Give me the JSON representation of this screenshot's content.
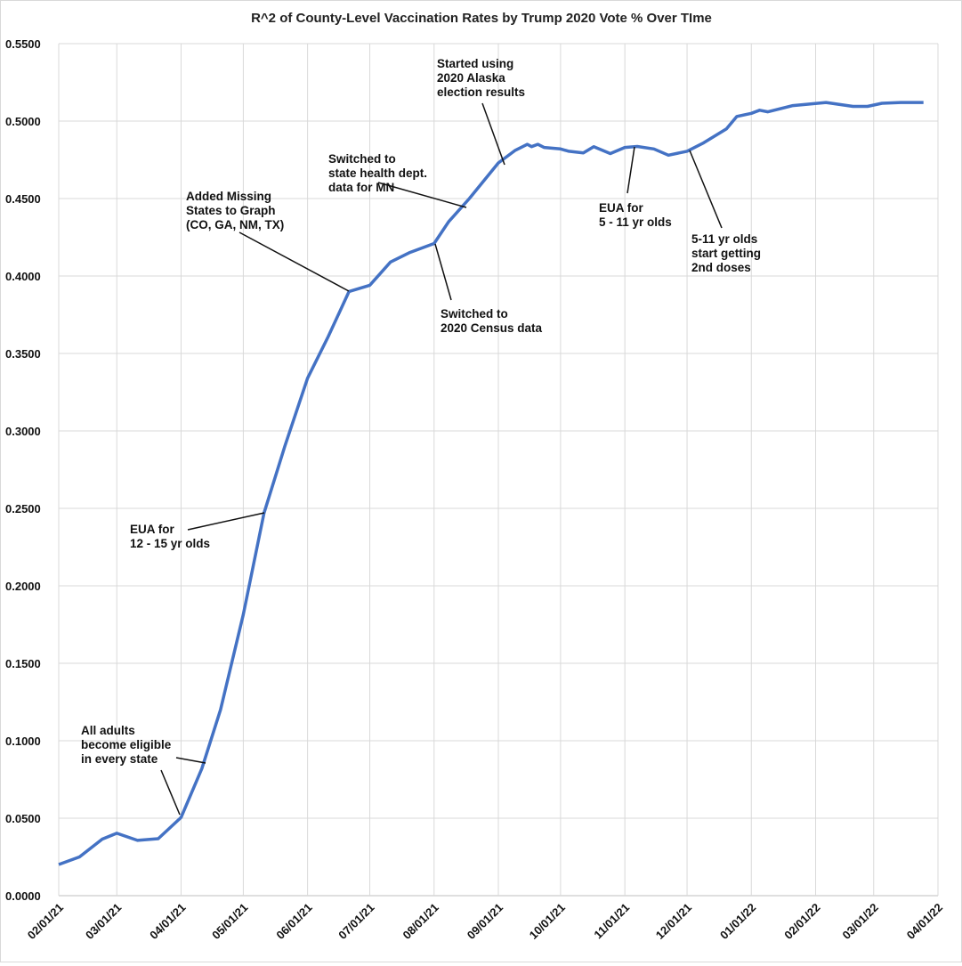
{
  "chart_data": {
    "type": "line",
    "title": "R^2 of County-Level Vaccination Rates by Trump 2020 Vote % Over TIme",
    "xlabel": "",
    "ylabel": "",
    "ylim": [
      0,
      0.55
    ],
    "xlim": [
      "2021-02-01",
      "2022-04-01"
    ],
    "grid": true,
    "legend": "none",
    "line_color": "#4472C4",
    "y_ticks": [
      "0.0000",
      "0.0500",
      "0.1000",
      "0.1500",
      "0.2000",
      "0.2500",
      "0.3000",
      "0.3500",
      "0.4000",
      "0.4500",
      "0.5000",
      "0.5500"
    ],
    "x_ticks": [
      "02/01/21",
      "03/01/21",
      "04/01/21",
      "05/01/21",
      "06/01/21",
      "07/01/21",
      "08/01/21",
      "09/01/21",
      "10/01/21",
      "11/01/21",
      "12/01/21",
      "01/01/22",
      "02/01/22",
      "03/01/22",
      "04/01/22"
    ],
    "x_tick_dates": [
      "2021-02-01",
      "2021-03-01",
      "2021-04-01",
      "2021-05-01",
      "2021-06-01",
      "2021-07-01",
      "2021-08-01",
      "2021-09-01",
      "2021-10-01",
      "2021-11-01",
      "2021-12-01",
      "2022-01-01",
      "2022-02-01",
      "2022-03-01",
      "2022-04-01"
    ],
    "series": [
      {
        "x": [
          "2021-02-01",
          "2021-02-11",
          "2021-02-22",
          "2021-03-01",
          "2021-03-11",
          "2021-03-21",
          "2021-04-01",
          "2021-04-11",
          "2021-04-20",
          "2021-05-01",
          "2021-05-11",
          "2021-05-21",
          "2021-06-01",
          "2021-06-11",
          "2021-06-21",
          "2021-07-01",
          "2021-07-11",
          "2021-07-20",
          "2021-08-01",
          "2021-08-08",
          "2021-08-18",
          "2021-09-01",
          "2021-09-09",
          "2021-09-15",
          "2021-09-17",
          "2021-09-20",
          "2021-09-23",
          "2021-10-01",
          "2021-10-05",
          "2021-10-12",
          "2021-10-17",
          "2021-10-25",
          "2021-11-01",
          "2021-11-07",
          "2021-11-15",
          "2021-11-22",
          "2021-12-01",
          "2021-12-09",
          "2021-12-20",
          "2021-12-25",
          "2022-01-01",
          "2022-01-05",
          "2022-01-09",
          "2022-01-21",
          "2022-02-06",
          "2022-02-19",
          "2022-02-26",
          "2022-03-05",
          "2022-03-14",
          "2022-03-25"
        ],
        "y": [
          0.0201,
          0.025,
          0.0365,
          0.0403,
          0.0357,
          0.0368,
          0.0505,
          0.082,
          0.12,
          0.1815,
          0.247,
          0.29,
          0.334,
          0.361,
          0.39,
          0.394,
          0.409,
          0.415,
          0.421,
          0.435,
          0.45,
          0.473,
          0.481,
          0.485,
          0.4835,
          0.485,
          0.483,
          0.482,
          0.4805,
          0.4795,
          0.4835,
          0.479,
          0.483,
          0.4836,
          0.482,
          0.478,
          0.4805,
          0.486,
          0.495,
          0.503,
          0.505,
          0.507,
          0.506,
          0.51,
          0.512,
          0.5095,
          0.5095,
          0.5115,
          0.512,
          0.512
        ]
      }
    ],
    "annotations": [
      {
        "lines": [
          "All adults",
          "become eligible",
          "in every state"
        ]
      },
      {
        "lines": [
          "EUA for",
          "12 - 15 yr olds"
        ]
      },
      {
        "lines": [
          "Added Missing",
          "States to Graph",
          "(CO, GA, NM, TX)"
        ]
      },
      {
        "lines": [
          "Switched to",
          "2020 Census data"
        ]
      },
      {
        "lines": [
          "Switched to",
          "state health dept.",
          "data for MN"
        ]
      },
      {
        "lines": [
          "Started using",
          "2020 Alaska",
          "election results"
        ]
      },
      {
        "lines": [
          "EUA for",
          "5 - 11 yr olds"
        ]
      },
      {
        "lines": [
          "5-11 yr olds",
          "start getting",
          "2nd doses"
        ]
      }
    ]
  }
}
